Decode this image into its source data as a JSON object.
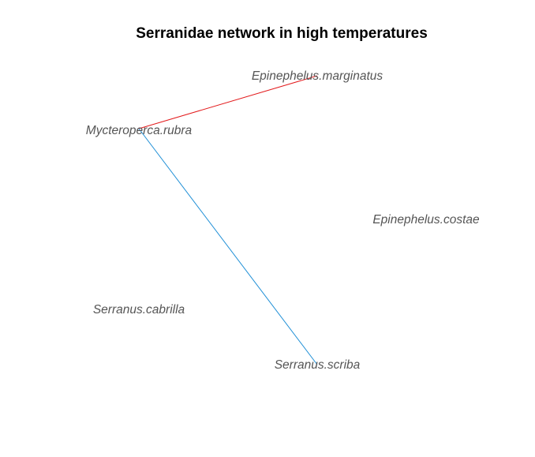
{
  "title": "Serranidae network in high temperatures",
  "nodes": [
    {
      "id": "epinephelus-marginatus",
      "label": "Epinephelus.marginatus"
    },
    {
      "id": "mycteroperca-rubra",
      "label": "Mycteroperca.rubra"
    },
    {
      "id": "epinephelus-costae",
      "label": "Epinephelus.costae"
    },
    {
      "id": "serranus-cabrilla",
      "label": "Serranus.cabrilla"
    },
    {
      "id": "serranus-scriba",
      "label": "Serranus.scriba"
    }
  ],
  "edges": [
    {
      "from": "mycteroperca-rubra",
      "to": "epinephelus-marginatus",
      "color": "#e31a1c"
    },
    {
      "from": "mycteroperca-rubra",
      "to": "serranus-scriba",
      "color": "#1f8fd6"
    }
  ]
}
